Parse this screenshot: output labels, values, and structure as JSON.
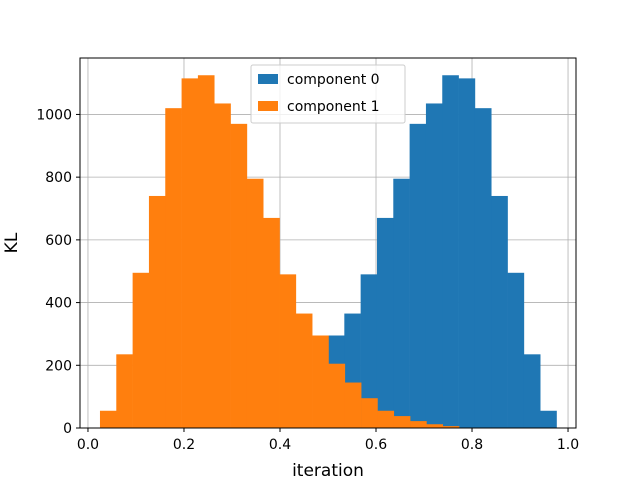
{
  "chart_data": {
    "type": "histogram",
    "xlabel": "iteration",
    "ylabel": "KL",
    "xlim": [
      -0.0166,
      1.0166
    ],
    "ylim": [
      0,
      1180
    ],
    "xticks": [
      0.0,
      0.2,
      0.4,
      0.6,
      0.8,
      1.0
    ],
    "xtick_labels": [
      "0.0",
      "0.2",
      "0.4",
      "0.6",
      "0.8",
      "1.0"
    ],
    "yticks": [
      0,
      200,
      400,
      600,
      800,
      1000
    ],
    "ytick_labels": [
      "0",
      "200",
      "400",
      "600",
      "800",
      "1000"
    ],
    "grid": true,
    "legend_position": "top-center",
    "series": [
      {
        "name": "component 0",
        "color": "#1f77b4",
        "bins": [
          [
            0.5,
            0.534,
            295
          ],
          [
            0.534,
            0.568,
            365
          ],
          [
            0.568,
            0.602,
            490
          ],
          [
            0.602,
            0.636,
            670
          ],
          [
            0.636,
            0.67,
            795
          ],
          [
            0.67,
            0.704,
            970
          ],
          [
            0.704,
            0.738,
            1035
          ],
          [
            0.738,
            0.772,
            1125
          ],
          [
            0.772,
            0.806,
            1115
          ],
          [
            0.806,
            0.84,
            1020
          ],
          [
            0.84,
            0.874,
            740
          ],
          [
            0.874,
            0.908,
            495
          ],
          [
            0.908,
            0.942,
            235
          ],
          [
            0.942,
            0.976,
            55
          ]
        ]
      },
      {
        "name": "component 1",
        "color": "#ff7f0e",
        "bins": [
          [
            0.025,
            0.059,
            55
          ],
          [
            0.059,
            0.093,
            235
          ],
          [
            0.093,
            0.127,
            495
          ],
          [
            0.127,
            0.161,
            740
          ],
          [
            0.161,
            0.195,
            1020
          ],
          [
            0.195,
            0.229,
            1115
          ],
          [
            0.229,
            0.263,
            1125
          ],
          [
            0.263,
            0.297,
            1035
          ],
          [
            0.297,
            0.331,
            970
          ],
          [
            0.331,
            0.365,
            795
          ],
          [
            0.365,
            0.399,
            670
          ],
          [
            0.399,
            0.433,
            490
          ],
          [
            0.433,
            0.467,
            365
          ],
          [
            0.467,
            0.501,
            295
          ],
          [
            0.501,
            0.535,
            205
          ],
          [
            0.535,
            0.569,
            145
          ],
          [
            0.569,
            0.603,
            95
          ],
          [
            0.603,
            0.637,
            55
          ],
          [
            0.637,
            0.671,
            38
          ],
          [
            0.671,
            0.705,
            22
          ],
          [
            0.705,
            0.739,
            12
          ],
          [
            0.739,
            0.773,
            6
          ]
        ]
      }
    ]
  }
}
